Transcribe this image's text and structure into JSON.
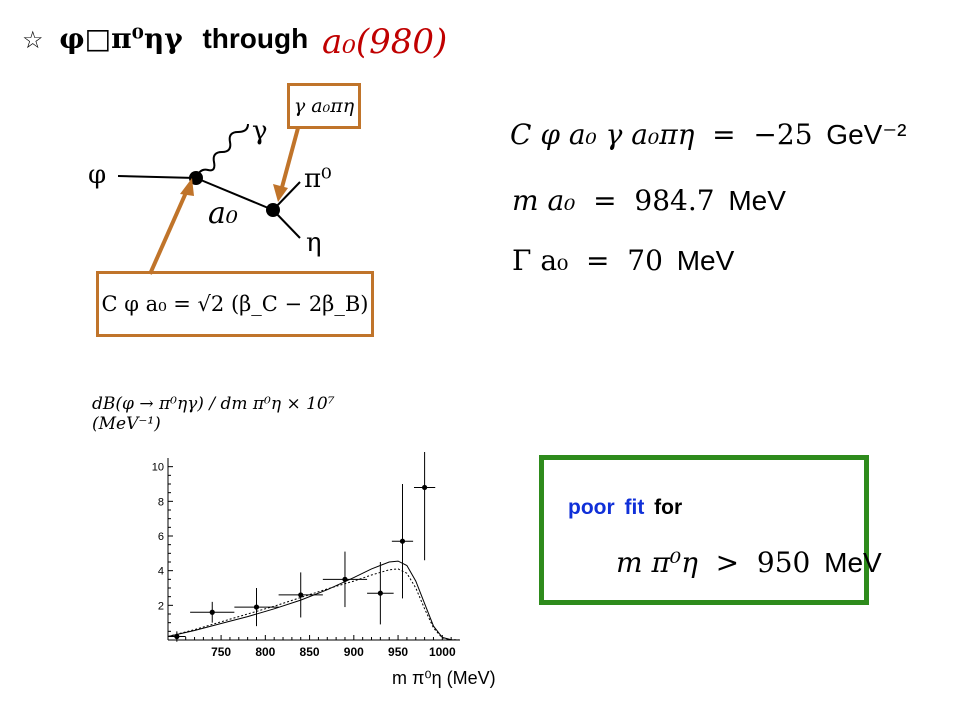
{
  "title": {
    "star": "☆",
    "process": "φ□π⁰ηγ",
    "through": "through",
    "resonance": "a₀(980)"
  },
  "diagram": {
    "phi": "φ",
    "gamma": "γ",
    "pi0": "π⁰",
    "eta": "η",
    "a0": "a₀",
    "coupling_label": "γ a₀πη",
    "coupling_formula": "C φ a₀ = √2 (β_C − 2β_B)",
    "colors": {
      "arrow": "#c0742a",
      "line": "#000000"
    }
  },
  "params": {
    "eq1": {
      "lhs": "C φ a₀ γ a₀πη",
      "op": "=",
      "value": "−25",
      "unit": "GeV⁻²"
    },
    "eq2": {
      "lhs": "m a₀",
      "op": "=",
      "value": "984.7",
      "unit": "MeV"
    },
    "eq3": {
      "lhs": "Γ a₀",
      "op": "=",
      "value": "70",
      "unit": "MeV"
    }
  },
  "fit_note": {
    "poor": "poor",
    "fit": "fit",
    "for": "for",
    "condition_lhs": "m π⁰η",
    "condition_op": ">",
    "condition_value": "950",
    "condition_unit": "MeV",
    "border_color": "#2e8b1c",
    "blue_color": "#1030d8"
  },
  "chart_data": {
    "type": "scatter",
    "ylabel": "dB(φ → π⁰ηγ) / dm π⁰η × 10⁷ (MeV⁻¹)",
    "xlabel": "m π⁰η (MeV)",
    "x_ticks": [
      750,
      800,
      850,
      900,
      950,
      1000
    ],
    "y_ticks": [
      2,
      4,
      6,
      8,
      10
    ],
    "xlim": [
      690,
      1020
    ],
    "ylim": [
      0,
      10.5
    ],
    "points": [
      {
        "x": 700,
        "y": 0.2,
        "xerr": 10,
        "yerr": 0.3
      },
      {
        "x": 740,
        "y": 1.6,
        "xerr": 25,
        "yerr": 0.6
      },
      {
        "x": 790,
        "y": 1.9,
        "xerr": 25,
        "yerr": 1.1
      },
      {
        "x": 840,
        "y": 2.6,
        "xerr": 25,
        "yerr": 1.3
      },
      {
        "x": 890,
        "y": 3.5,
        "xerr": 25,
        "yerr": 1.6
      },
      {
        "x": 930,
        "y": 2.7,
        "xerr": 15,
        "yerr": 1.8
      },
      {
        "x": 955,
        "y": 5.7,
        "xerr": 12,
        "yerr": 3.3
      },
      {
        "x": 980,
        "y": 8.8,
        "xerr": 12,
        "yerr": 4.2
      }
    ],
    "series": [
      {
        "style": "solid",
        "x": [
          690,
          720,
          750,
          780,
          810,
          840,
          870,
          900,
          920,
          940,
          950,
          960,
          970,
          980,
          990,
          1000,
          1010,
          1020
        ],
        "y": [
          0.2,
          0.55,
          0.95,
          1.35,
          1.8,
          2.3,
          2.9,
          3.6,
          4.1,
          4.5,
          4.55,
          4.3,
          3.4,
          2.1,
          0.8,
          0.15,
          0.02,
          0
        ]
      },
      {
        "style": "dotted",
        "x": [
          690,
          720,
          750,
          780,
          810,
          840,
          870,
          900,
          920,
          940,
          950,
          960,
          970,
          980,
          990,
          1000,
          1010,
          1020
        ],
        "y": [
          0.2,
          0.6,
          1.05,
          1.5,
          1.95,
          2.45,
          2.95,
          3.4,
          3.75,
          4.05,
          4.1,
          3.85,
          3.0,
          1.8,
          0.7,
          0.12,
          0.02,
          0
        ]
      }
    ]
  }
}
